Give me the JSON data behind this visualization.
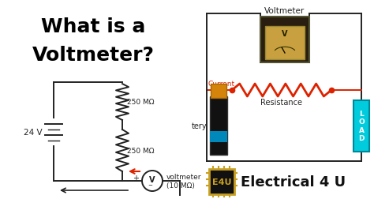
{
  "bg_color": "#ffffff",
  "fig_size": [
    4.74,
    2.53
  ],
  "dpi": 100,
  "title_line1": "What is a",
  "title_line2": "Voltmeter?",
  "title_fontsize": 18,
  "left_circuit": {
    "resistor1_label": "250 MΩ",
    "resistor2_label": "250 MΩ",
    "voltage_label": "24 V",
    "voltmeter_label": "voltmeter\n(10 MΩ)"
  },
  "right_circuit": {
    "voltmeter_label": "Voltmeter",
    "current_label": "Current",
    "resistance_label": "Resistance",
    "battery_label": "tery",
    "load_label": "L\nO\nA\nD"
  },
  "brand_text": "Electrical 4 U",
  "brand_fontsize": 13,
  "wire_color": "#222222",
  "red_color": "#dd2200",
  "load_color": "#00ccdd",
  "brand_chip_color": "#c8a020",
  "brand_chip_face": "#111111"
}
